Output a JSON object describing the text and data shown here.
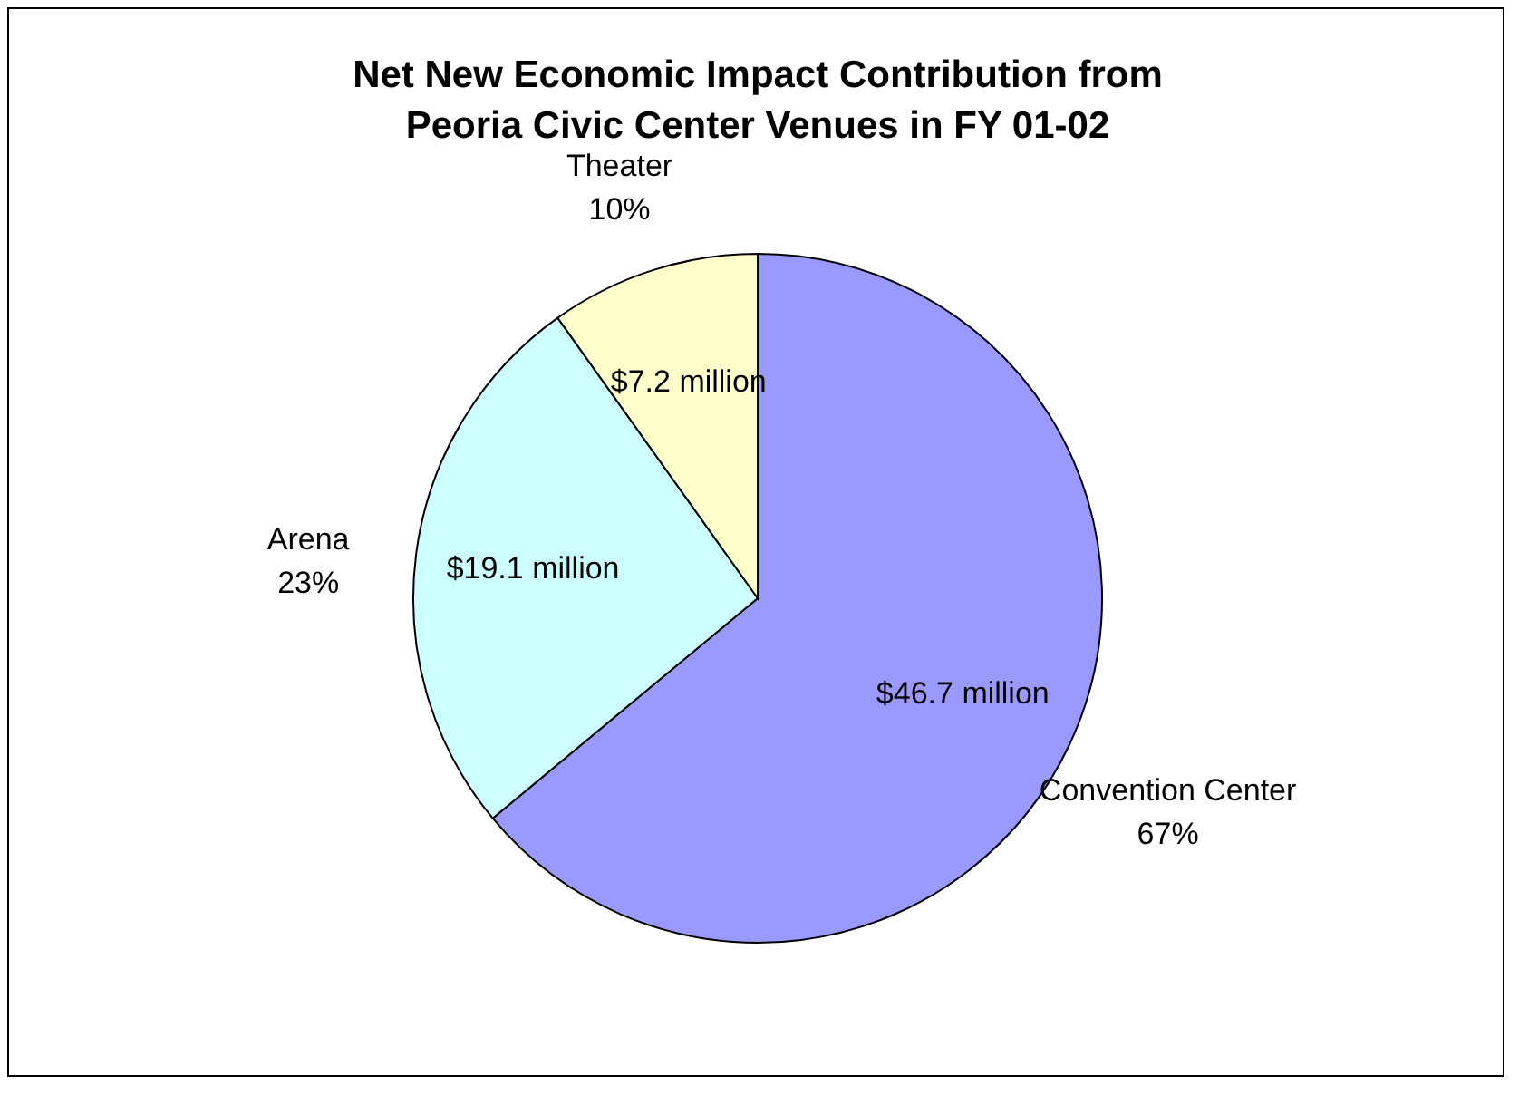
{
  "chart_data": {
    "type": "pie",
    "title": "Net New Economic Impact Contribution from Peoria Civic Center Venues in FY 01-02",
    "categories": [
      "Convention Center",
      "Arena",
      "Theater"
    ],
    "values": [
      46.7,
      19.1,
      7.2
    ],
    "colors": [
      "#9999ff",
      "#ccffff",
      "#ffffcc"
    ],
    "value_labels": [
      "$46.7 million",
      "$19.1 million",
      "$7.2 million"
    ],
    "annotations": [
      "67%",
      "23%",
      "10%"
    ]
  }
}
